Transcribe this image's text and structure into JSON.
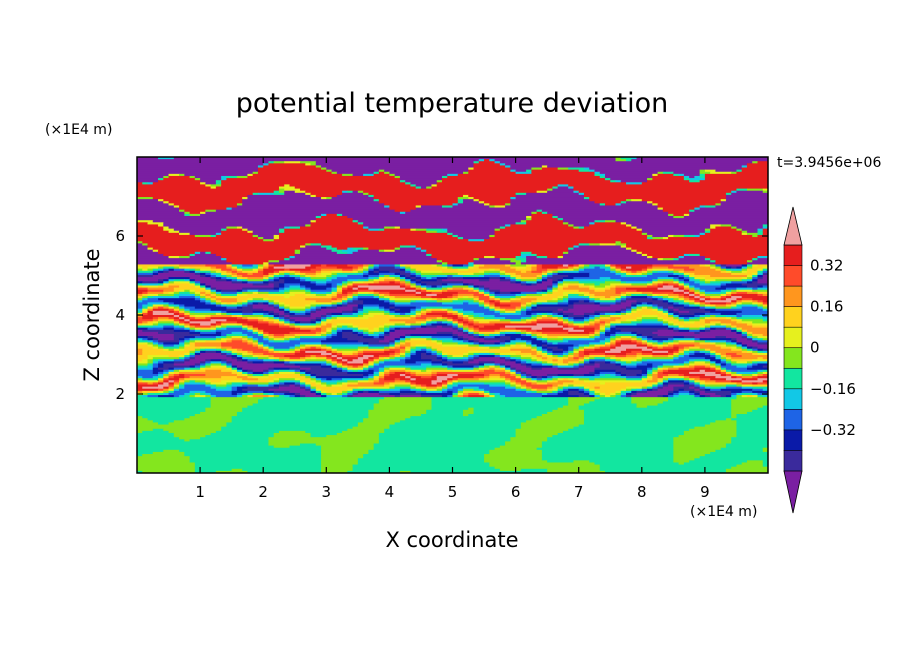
{
  "chart_data": {
    "type": "heatmap",
    "title": "potential temperature deviation",
    "xlabel": "X coordinate",
    "ylabel": "Z coordinate",
    "x_unit": "(×1E4 m)",
    "y_unit": "(×1E4 m)",
    "time_label": "t=3.9456e+06",
    "xlim": [
      0,
      10
    ],
    "ylim": [
      0,
      8
    ],
    "x_ticks": [
      "1",
      "2",
      "3",
      "4",
      "5",
      "6",
      "7",
      "8",
      "9"
    ],
    "y_ticks": [
      "2",
      "4",
      "6"
    ],
    "colorbar": {
      "levels": [
        -0.48,
        -0.4,
        -0.32,
        -0.24,
        -0.16,
        -0.08,
        0,
        0.08,
        0.16,
        0.24,
        0.32,
        0.4,
        0.48
      ],
      "labels": [
        "0.32",
        "0.16",
        "0",
        "−0.16",
        "−0.32"
      ],
      "colors": [
        "#7a1fa2",
        "#3a2a9c",
        "#0a1aa8",
        "#1e64e6",
        "#12c8e6",
        "#12e6a0",
        "#84e61e",
        "#e6f01e",
        "#ffd21e",
        "#ff961e",
        "#ff4b2a",
        "#e61e1e",
        "#f0a0a0"
      ],
      "extend": "both"
    },
    "layers": [
      {
        "z": [
          0.0,
          1.9
        ],
        "value": "0 to 0.08 / -0.08 to 0 (green mix)"
      },
      {
        "z": [
          1.9,
          5.3
        ],
        "value": "mixed strong fluctuations"
      },
      {
        "z": [
          5.3,
          8.0
        ],
        "value": "alternating bands near ±0.48"
      }
    ]
  }
}
